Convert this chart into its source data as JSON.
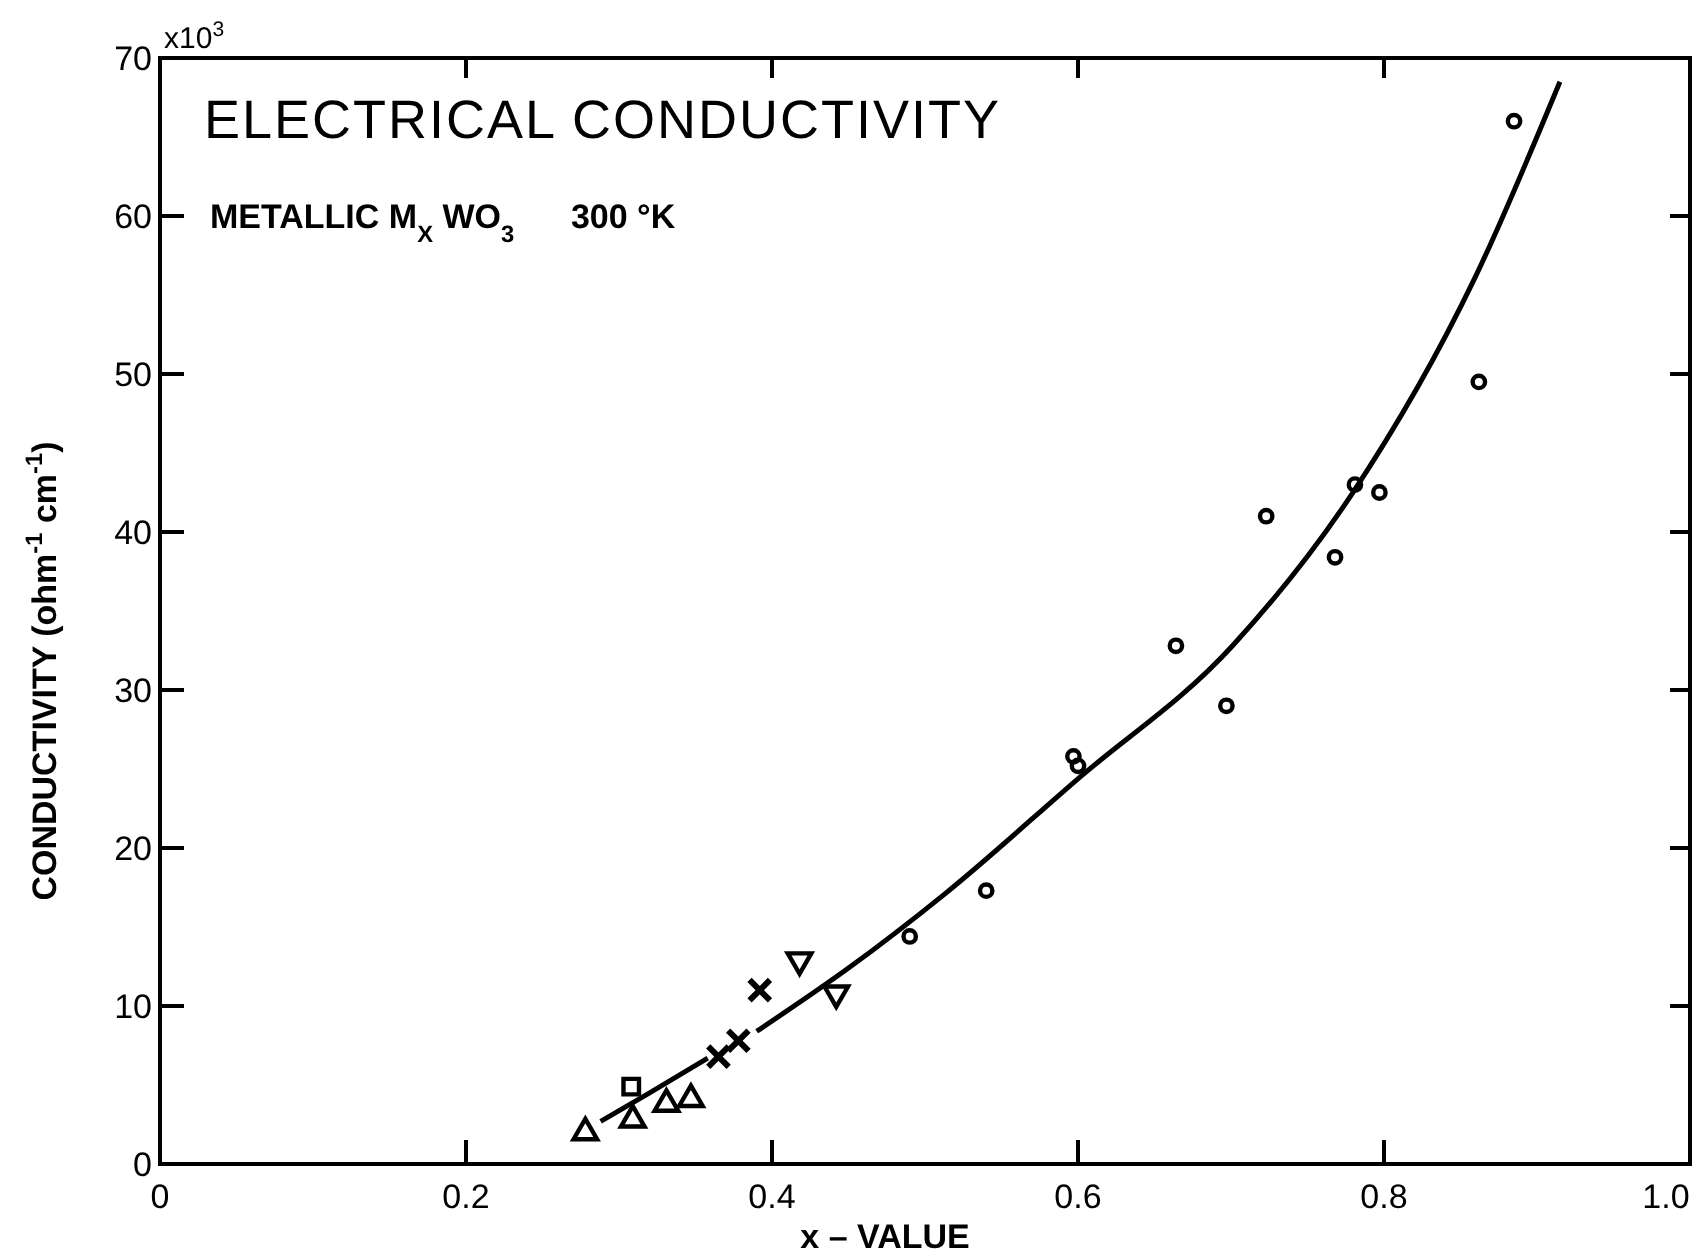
{
  "chart_data": {
    "type": "scatter",
    "title": "ELECTRICAL CONDUCTIVITY",
    "subtitle": "METALLIC M$_{X}$ WO$_{3}$      300 °K",
    "xlabel": "x – VALUE",
    "ylabel": "CONDUCTIVITY (ohm$^{-1}$ cm$^{-1}$)",
    "xlim": [
      0,
      1.0
    ],
    "ylim": [
      0,
      70
    ],
    "xticks": [
      {
        "value": 0,
        "label": "0"
      },
      0.2,
      0.4,
      0.6,
      0.8,
      {
        "value": 1.0,
        "label": "1.0"
      }
    ],
    "yticks": [
      0,
      10,
      20,
      30,
      40,
      50,
      60,
      70
    ],
    "annotations": [
      "x10$^{3}$"
    ],
    "grid": false,
    "series": [
      {
        "color": "#000000",
        "marker": "triangle",
        "x": [
          0.278,
          0.309,
          0.331,
          0.347
        ],
        "values": [
          2.0,
          2.8,
          3.8,
          4.1
        ]
      },
      {
        "color": "#000000",
        "marker": "square",
        "x": [
          0.308
        ],
        "values": [
          4.9
        ]
      },
      {
        "color": "#000000",
        "marker": "cross",
        "x": [
          0.365,
          0.378,
          0.392
        ],
        "values": [
          6.8,
          7.8,
          11.0
        ]
      },
      {
        "color": "#000000",
        "marker": "triangle-down",
        "x": [
          0.418,
          0.442
        ],
        "values": [
          12.9,
          10.8
        ]
      },
      {
        "color": "#000000",
        "marker": "circle",
        "x": [
          0.49,
          0.54,
          0.597,
          0.6,
          0.664,
          0.697,
          0.723,
          0.768,
          0.781,
          0.797,
          0.862,
          0.885
        ],
        "values": [
          14.4,
          17.3,
          25.8,
          25.2,
          32.8,
          29.0,
          41.0,
          38.4,
          43.0,
          42.5,
          49.5,
          66.0
        ]
      },
      {
        "type": "line",
        "color": "#000000",
        "line_style": "solid",
        "x": [
          0.288,
          0.32,
          0.358,
          0.37,
          0.39,
          0.45,
          0.513,
          0.599,
          0.701,
          0.779,
          0.859,
          0.915
        ],
        "values": [
          2.7,
          4.5,
          6.7,
          null,
          8.4,
          12.4,
          17.1,
          24.3,
          32.8,
          42.4,
          56.0,
          68.5
        ]
      }
    ]
  }
}
